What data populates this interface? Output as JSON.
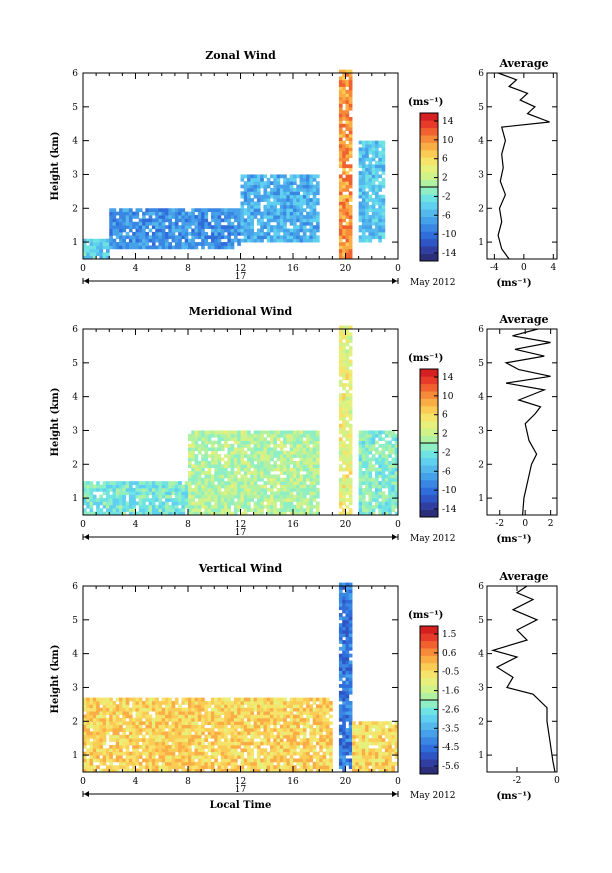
{
  "figure": {
    "colors": [
      "#2b2f7a",
      "#2f3ea0",
      "#2f55c4",
      "#2f6ddb",
      "#3a86e3",
      "#46a0ea",
      "#55b8ec",
      "#5fd0ef",
      "#6fe3e3",
      "#8fefc4",
      "#b0f2a2",
      "#cff28a",
      "#e7f07a",
      "#f6e36a",
      "#fbcc55",
      "#fbad45",
      "#f78a39",
      "#f0612f",
      "#e63b2a",
      "#d42020"
    ],
    "panels": [
      {
        "id": "zonal",
        "title": "Zonal Wind",
        "ylabel": "Height (km)",
        "unit": "(ms⁻¹)",
        "x_ticks": [
          "0",
          "4",
          "8",
          "12",
          "16",
          "20",
          "0"
        ],
        "y_ticks": [
          "1",
          "2",
          "3",
          "4",
          "5",
          "6"
        ],
        "date_day": "17",
        "date_label": "May 2012",
        "xlabel": "",
        "colorbar_ticks": [
          "14",
          "10",
          "6",
          "2",
          "-2",
          "-6",
          "-10",
          "-14"
        ],
        "profile_title": "Average",
        "profile_x_ticks": [
          "-4",
          "0",
          "4"
        ],
        "profile_xlabel": "(ms⁻¹)"
      },
      {
        "id": "meridional",
        "title": "Meridional Wind",
        "ylabel": "Height (km)",
        "unit": "(ms⁻¹)",
        "x_ticks": [
          "0",
          "4",
          "8",
          "12",
          "16",
          "20",
          "0"
        ],
        "y_ticks": [
          "1",
          "2",
          "3",
          "4",
          "5",
          "6"
        ],
        "date_day": "17",
        "date_label": "May 2012",
        "xlabel": "",
        "colorbar_ticks": [
          "14",
          "10",
          "6",
          "2",
          "-2",
          "-6",
          "-10",
          "-14"
        ],
        "profile_title": "Average",
        "profile_x_ticks": [
          "-2",
          "0",
          "2"
        ],
        "profile_xlabel": "(ms⁻¹)"
      },
      {
        "id": "vertical",
        "title": "Vertical Wind",
        "ylabel": "Height (km)",
        "unit": "(ms⁻¹)",
        "x_ticks": [
          "0",
          "4",
          "8",
          "12",
          "16",
          "20",
          "0"
        ],
        "y_ticks": [
          "1",
          "2",
          "3",
          "4",
          "5",
          "6"
        ],
        "date_day": "17",
        "date_label": "May 2012",
        "xlabel": "Local Time",
        "colorbar_ticks": [
          "1.5",
          "0.6",
          "-0.5",
          "-1.6",
          "-2.6",
          "-3.5",
          "-4.5",
          "-5.6"
        ],
        "profile_title": "Average",
        "profile_x_ticks": [
          "-2",
          "0"
        ],
        "profile_xlabel": "(ms⁻¹)"
      }
    ]
  },
  "chart_data": [
    {
      "type": "heatmap",
      "title": "Zonal Wind",
      "xlabel": "",
      "ylabel": "Height (km)",
      "xlim": [
        0,
        24
      ],
      "ylim": [
        0.5,
        6
      ],
      "colorbar": {
        "label": "(ms⁻¹)",
        "range": [
          -16,
          16
        ]
      },
      "notes_visible": [
        "17",
        "May 2012"
      ],
      "field_summary": [
        {
          "region": "0-2 h, 0.5-1 km",
          "value": -4
        },
        {
          "region": "2-12 h, 0.8-2 km",
          "value": -8
        },
        {
          "region": "12-18 h, 1-3 km",
          "value": -6
        },
        {
          "region": "19.5-20.5 h, 0.5-6 km",
          "value": 10
        },
        {
          "region": "21-23 h, 1-4 km",
          "value": -5
        }
      ]
    },
    {
      "type": "line",
      "title": "Average",
      "xlabel": "(ms⁻¹)",
      "ylabel": "Height (km)",
      "xlim": [
        -5,
        4.5
      ],
      "ylim": [
        0.5,
        6
      ],
      "points": [
        {
          "x": -2.0,
          "y": 0.5
        },
        {
          "x": -3.0,
          "y": 0.8
        },
        {
          "x": -3.5,
          "y": 1.2
        },
        {
          "x": -3.0,
          "y": 1.6
        },
        {
          "x": -3.3,
          "y": 2.0
        },
        {
          "x": -2.5,
          "y": 2.4
        },
        {
          "x": -3.2,
          "y": 2.8
        },
        {
          "x": -2.8,
          "y": 3.2
        },
        {
          "x": -3.0,
          "y": 3.6
        },
        {
          "x": -2.5,
          "y": 4.0
        },
        {
          "x": -3.0,
          "y": 4.4
        },
        {
          "x": 3.5,
          "y": 4.55
        },
        {
          "x": 0.5,
          "y": 4.8
        },
        {
          "x": 1.5,
          "y": 5.0
        },
        {
          "x": -0.5,
          "y": 5.2
        },
        {
          "x": 0.5,
          "y": 5.4
        },
        {
          "x": -2.0,
          "y": 5.6
        },
        {
          "x": -1.0,
          "y": 5.8
        },
        {
          "x": -3.5,
          "y": 6.0
        }
      ]
    },
    {
      "type": "heatmap",
      "title": "Meridional Wind",
      "xlabel": "",
      "ylabel": "Height (km)",
      "xlim": [
        0,
        24
      ],
      "ylim": [
        0.5,
        6
      ],
      "colorbar": {
        "label": "(ms⁻¹)",
        "range": [
          -16,
          16
        ]
      },
      "notes_visible": [
        "17",
        "May 2012"
      ],
      "field_summary": [
        {
          "region": "0-8 h, 0.5-1.5 km",
          "value": -2
        },
        {
          "region": "8-18 h, 0.5-3 km",
          "value": 1
        },
        {
          "region": "19.5-20.5 h, 0.5-6 km",
          "value": 4
        },
        {
          "region": "21-24 h, 0.5-3 km",
          "value": -1
        }
      ]
    },
    {
      "type": "line",
      "title": "Average",
      "xlabel": "(ms⁻¹)",
      "ylabel": "Height (km)",
      "xlim": [
        -3,
        2.5
      ],
      "ylim": [
        0.5,
        6
      ],
      "points": [
        {
          "x": -0.2,
          "y": 0.5
        },
        {
          "x": -0.1,
          "y": 1.0
        },
        {
          "x": 0.2,
          "y": 1.5
        },
        {
          "x": 0.5,
          "y": 2.0
        },
        {
          "x": 0.9,
          "y": 2.3
        },
        {
          "x": 0.3,
          "y": 2.7
        },
        {
          "x": 0.0,
          "y": 3.2
        },
        {
          "x": 0.8,
          "y": 3.5
        },
        {
          "x": 1.2,
          "y": 3.7
        },
        {
          "x": -0.5,
          "y": 3.9
        },
        {
          "x": 1.5,
          "y": 4.2
        },
        {
          "x": -1.5,
          "y": 4.4
        },
        {
          "x": 2.0,
          "y": 4.6
        },
        {
          "x": -0.5,
          "y": 4.8
        },
        {
          "x": -1.5,
          "y": 5.0
        },
        {
          "x": 1.5,
          "y": 5.2
        },
        {
          "x": -0.8,
          "y": 5.4
        },
        {
          "x": 2.0,
          "y": 5.6
        },
        {
          "x": -1.0,
          "y": 5.8
        },
        {
          "x": 1.0,
          "y": 6.0
        }
      ]
    },
    {
      "type": "heatmap",
      "title": "Vertical Wind",
      "xlabel": "Local Time",
      "ylabel": "Height (km)",
      "xlim": [
        0,
        24
      ],
      "ylim": [
        0.5,
        6
      ],
      "colorbar": {
        "label": "(ms⁻¹)",
        "range": [
          -6.2,
          2.1
        ]
      },
      "notes_visible": [
        "17",
        "May 2012"
      ],
      "field_summary": [
        {
          "region": "0-19 h, 0.5-2.7 km",
          "value": -0.3
        },
        {
          "region": "19.5-20.5 h, 0.5-6 km",
          "value": -4.5
        },
        {
          "region": "20.5-24 h, 0.5-2 km",
          "value": -0.4
        }
      ]
    },
    {
      "type": "line",
      "title": "Average",
      "xlabel": "(ms⁻¹)",
      "ylabel": "Height (km)",
      "xlim": [
        -3.5,
        0
      ],
      "ylim": [
        0.5,
        6
      ],
      "points": [
        {
          "x": -0.1,
          "y": 0.5
        },
        {
          "x": -0.2,
          "y": 0.8
        },
        {
          "x": -0.3,
          "y": 1.2
        },
        {
          "x": -0.4,
          "y": 1.6
        },
        {
          "x": -0.5,
          "y": 2.0
        },
        {
          "x": -0.5,
          "y": 2.4
        },
        {
          "x": -1.2,
          "y": 2.8
        },
        {
          "x": -2.5,
          "y": 3.0
        },
        {
          "x": -2.2,
          "y": 3.3
        },
        {
          "x": -3.0,
          "y": 3.6
        },
        {
          "x": -2.0,
          "y": 3.9
        },
        {
          "x": -3.2,
          "y": 4.1
        },
        {
          "x": -1.5,
          "y": 4.4
        },
        {
          "x": -2.0,
          "y": 4.7
        },
        {
          "x": -1.0,
          "y": 5.0
        },
        {
          "x": -2.2,
          "y": 5.3
        },
        {
          "x": -1.2,
          "y": 5.6
        },
        {
          "x": -2.0,
          "y": 5.8
        },
        {
          "x": -1.5,
          "y": 6.0
        }
      ]
    }
  ]
}
